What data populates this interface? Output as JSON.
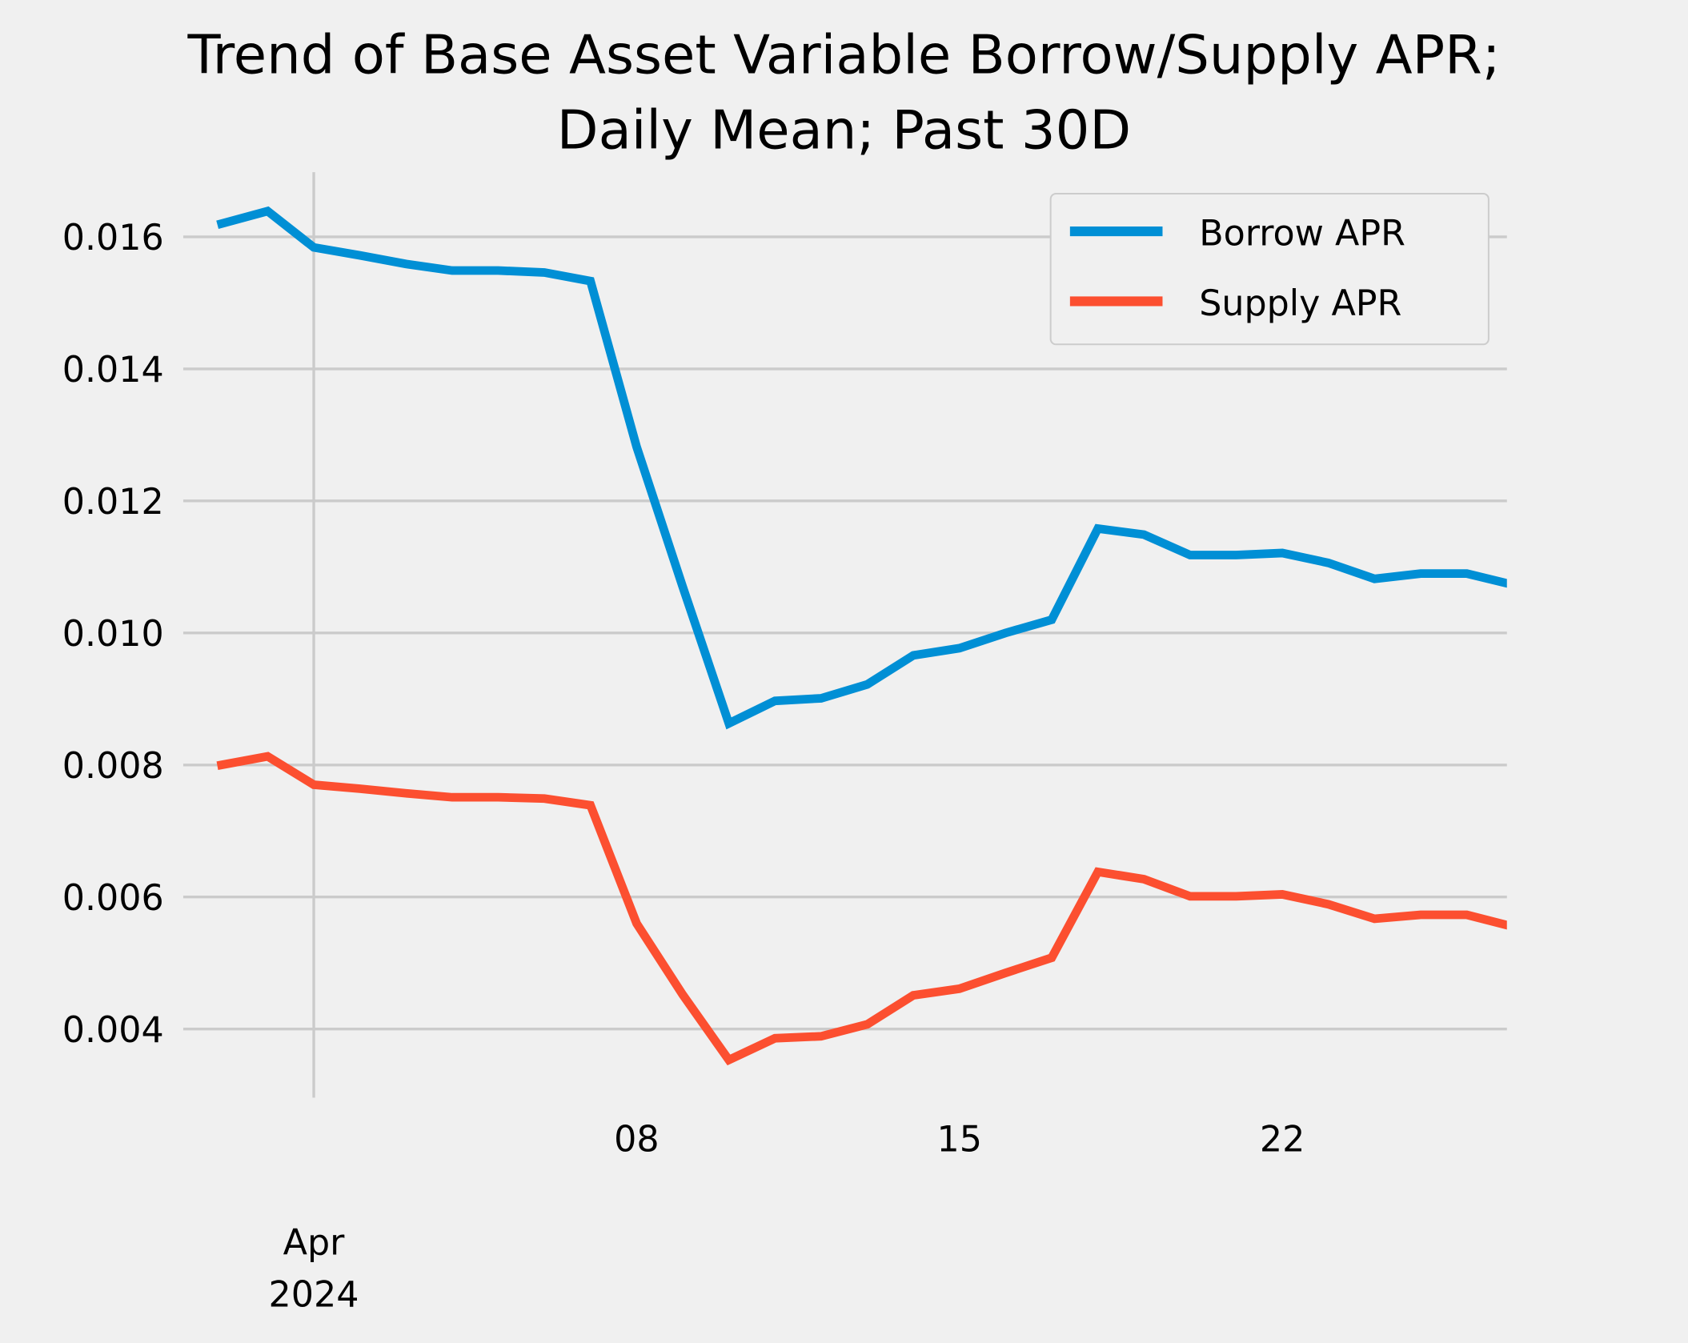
{
  "chart_data": {
    "type": "line",
    "title": "Trend of Base Asset Variable Borrow/Supply APR;\nDaily Mean; Past 30D",
    "title_lines": [
      "Trend of Base Asset Variable Borrow/Supply APR;",
      "Daily Mean; Past 30D"
    ],
    "xlabel": "",
    "ylabel": "",
    "x_unit": "days relative to 2024-04-01",
    "x": [
      -2,
      -1,
      0,
      1,
      2,
      3,
      4,
      5,
      6,
      7,
      8,
      9,
      10,
      11,
      12,
      13,
      14,
      15,
      16,
      17,
      18,
      19,
      20,
      21,
      22,
      23,
      24,
      25,
      26
    ],
    "x_dates": [
      "2024-03-30",
      "2024-03-31",
      "2024-04-01",
      "2024-04-02",
      "2024-04-03",
      "2024-04-04",
      "2024-04-05",
      "2024-04-06",
      "2024-04-07",
      "2024-04-08",
      "2024-04-09",
      "2024-04-10",
      "2024-04-11",
      "2024-04-12",
      "2024-04-13",
      "2024-04-14",
      "2024-04-15",
      "2024-04-16",
      "2024-04-17",
      "2024-04-18",
      "2024-04-19",
      "2024-04-20",
      "2024-04-21",
      "2024-04-22",
      "2024-04-23",
      "2024-04-24",
      "2024-04-25",
      "2024-04-26",
      "2024-04-27"
    ],
    "series": [
      {
        "name": "Borrow APR",
        "color": "#008fd5",
        "values": [
          0.0162,
          0.01639,
          0.01584,
          0.01572,
          0.01559,
          0.01549,
          0.01549,
          0.01546,
          0.01533,
          0.01282,
          0.0107,
          0.00863,
          0.00897,
          0.00901,
          0.00922,
          0.00966,
          0.00977,
          0.01,
          0.0102,
          0.01158,
          0.01149,
          0.01118,
          0.01118,
          0.01121,
          0.01106,
          0.01082,
          0.0109,
          0.0109,
          0.01073
        ]
      },
      {
        "name": "Supply APR",
        "color": "#fc4f30",
        "values": [
          0.008,
          0.00813,
          0.0077,
          0.00764,
          0.00757,
          0.00751,
          0.00751,
          0.00749,
          0.00739,
          0.0056,
          0.00452,
          0.00353,
          0.00386,
          0.00389,
          0.00407,
          0.00451,
          0.00461,
          0.00485,
          0.00508,
          0.00638,
          0.00627,
          0.00601,
          0.00601,
          0.00604,
          0.00589,
          0.00567,
          0.00573,
          0.00573,
          0.00555
        ]
      }
    ],
    "xlim": [
      -2.83,
      25.87
    ],
    "ylim": [
      0.00296,
      0.01698
    ],
    "yticks": [
      0.004,
      0.006,
      0.008,
      0.01,
      0.012,
      0.014,
      0.016
    ],
    "ytick_labels": [
      "0.004",
      "0.006",
      "0.008",
      "0.010",
      "0.012",
      "0.014",
      "0.016"
    ],
    "xticks_minor": [
      7,
      14,
      21
    ],
    "xtick_minor_labels": [
      "08",
      "15",
      "22"
    ],
    "xtick_major": 0,
    "xtick_major_labels": [
      "Apr",
      "2024"
    ],
    "grid": true,
    "legend_position": "top-right",
    "background": "#f0f0f0"
  }
}
